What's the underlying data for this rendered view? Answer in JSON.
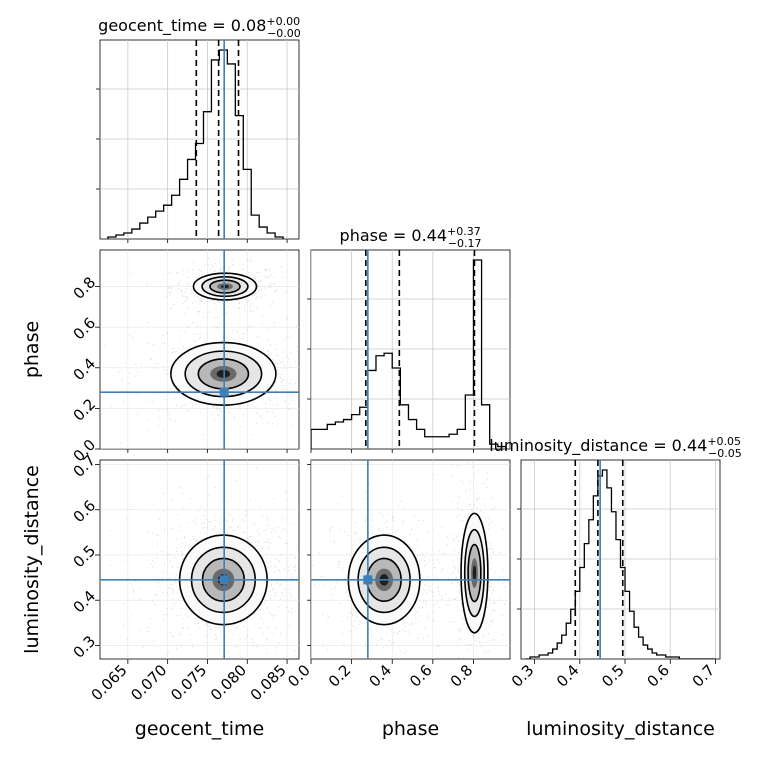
{
  "chart_data": {
    "type": "corner",
    "parameters": [
      "geocent_time",
      "phase",
      "luminosity_distance"
    ],
    "axis_labels": {
      "geocent_time": "geocent_time",
      "phase": "phase",
      "luminosity_distance": "luminosity_distance"
    },
    "titles": [
      {
        "param": "geocent_time",
        "prefix": "geocent_time = ",
        "median": "0.08",
        "plus": "+0.00",
        "minus": "−0.00"
      },
      {
        "param": "phase",
        "prefix": "phase = ",
        "median": "0.44",
        "plus": "+0.37",
        "minus": "−0.17"
      },
      {
        "param": "luminosity_distance",
        "prefix": "luminosity_distance = ",
        "median": "0.44",
        "plus": "+0.05",
        "minus": "−0.05"
      }
    ],
    "ranges": {
      "geocent_time": [
        0.0615,
        0.0865
      ],
      "phase": [
        0.0,
        0.98
      ],
      "luminosity_distance": [
        0.27,
        0.71
      ]
    },
    "ticks": {
      "geocent_time": [
        "0.065",
        "0.070",
        "0.075",
        "0.080",
        "0.085"
      ],
      "phase": [
        "0.0",
        "0.2",
        "0.4",
        "0.6",
        "0.8"
      ],
      "luminosity_distance": [
        "0.3",
        "0.4",
        "0.5",
        "0.6",
        "0.7"
      ]
    },
    "truths": {
      "geocent_time": 0.0771,
      "phase": 0.28,
      "luminosity_distance": 0.445
    },
    "quantiles": {
      "geocent_time": [
        0.0736,
        0.0764,
        0.0789
      ],
      "phase": [
        0.27,
        0.435,
        0.805
      ],
      "luminosity_distance": [
        0.39,
        0.44,
        0.495
      ]
    },
    "histograms": {
      "geocent_time": {
        "bin_edges": [
          0.0625,
          0.0635,
          0.0645,
          0.0655,
          0.0665,
          0.0675,
          0.0685,
          0.0695,
          0.0705,
          0.0715,
          0.0725,
          0.0735,
          0.0745,
          0.0755,
          0.0765,
          0.0775,
          0.0785,
          0.0795,
          0.0805,
          0.0815,
          0.0825,
          0.0835,
          0.0845
        ],
        "counts": [
          1,
          2,
          3,
          5,
          8,
          11,
          14,
          17,
          22,
          30,
          40,
          48,
          64,
          90,
          95,
          88,
          62,
          35,
          12,
          6,
          3,
          1
        ]
      },
      "phase": {
        "bin_edges": [
          0.0,
          0.04,
          0.08,
          0.12,
          0.16,
          0.2,
          0.24,
          0.28,
          0.32,
          0.36,
          0.4,
          0.44,
          0.48,
          0.52,
          0.56,
          0.6,
          0.64,
          0.68,
          0.72,
          0.76,
          0.8,
          0.84,
          0.88,
          0.92,
          0.96
        ],
        "counts": [
          8,
          8,
          10,
          11,
          12,
          14,
          17,
          32,
          38,
          39,
          33,
          18,
          12,
          8,
          5,
          5,
          5,
          6,
          8,
          22,
          77,
          18,
          2,
          1
        ]
      },
      "luminosity_distance": {
        "bin_edges": [
          0.28,
          0.29,
          0.3,
          0.31,
          0.32,
          0.33,
          0.34,
          0.35,
          0.36,
          0.37,
          0.38,
          0.39,
          0.4,
          0.41,
          0.42,
          0.43,
          0.44,
          0.45,
          0.46,
          0.47,
          0.48,
          0.49,
          0.5,
          0.51,
          0.52,
          0.53,
          0.54,
          0.55,
          0.56,
          0.57,
          0.58,
          0.59,
          0.6,
          0.61,
          0.62,
          0.63,
          0.64,
          0.65,
          0.66,
          0.67,
          0.68,
          0.69,
          0.7
        ],
        "counts": [
          0,
          1,
          1,
          2,
          2,
          3,
          5,
          8,
          12,
          18,
          25,
          34,
          46,
          58,
          70,
          82,
          92,
          95,
          86,
          74,
          60,
          46,
          34,
          24,
          16,
          11,
          7,
          5,
          3,
          2,
          2,
          1,
          1,
          1,
          0,
          0,
          0,
          0,
          0,
          0,
          0,
          0
        ]
      }
    },
    "density_2d": [
      {
        "x": "geocent_time",
        "y": "phase",
        "modes": [
          {
            "x_center": 0.0772,
            "y_center": 0.8,
            "x_sigma": 0.0018,
            "y_sigma": 0.03,
            "weight": 0.45
          },
          {
            "x_center": 0.077,
            "y_center": 0.37,
            "x_sigma": 0.003,
            "y_sigma": 0.07,
            "weight": 0.55
          }
        ]
      },
      {
        "x": "geocent_time",
        "y": "luminosity_distance",
        "modes": [
          {
            "x_center": 0.077,
            "y_center": 0.445,
            "x_sigma": 0.0025,
            "y_sigma": 0.045,
            "weight": 1.0
          }
        ]
      },
      {
        "x": "phase",
        "y": "luminosity_distance",
        "modes": [
          {
            "x_center": 0.36,
            "y_center": 0.445,
            "x_sigma": 0.08,
            "y_sigma": 0.045,
            "weight": 0.55
          },
          {
            "x_center": 0.805,
            "y_center": 0.46,
            "x_sigma": 0.03,
            "y_sigma": 0.06,
            "weight": 0.45
          }
        ]
      }
    ],
    "colors": {
      "truth": "#3e7fb6",
      "hist": "#000000",
      "contour": "#000000",
      "grid": "#c8c8c8"
    }
  }
}
